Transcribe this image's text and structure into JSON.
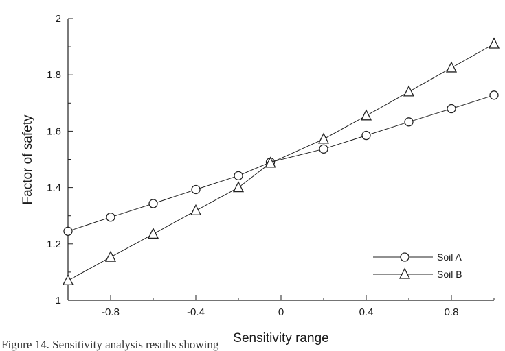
{
  "chart_data": {
    "type": "line",
    "xlabel": "Sensitivity range",
    "ylabel": "Factor of safety",
    "xlim": [
      -1,
      1
    ],
    "ylim": [
      1,
      2
    ],
    "x_ticks": [
      -0.8,
      -0.4,
      0,
      0.4,
      0.8
    ],
    "x_tick_labels": [
      "-0.8",
      "-0.4",
      "0",
      "0.4",
      "0.8"
    ],
    "y_ticks": [
      1,
      1.2,
      1.4,
      1.6,
      1.8,
      2
    ],
    "y_tick_labels": [
      "1",
      "1.2",
      "1.4",
      "1.6",
      "1.8",
      "2"
    ],
    "grid": false,
    "legend_position": "bottom-right",
    "series": [
      {
        "name": "Soil A",
        "marker": "circle",
        "x": [
          -1,
          -0.8,
          -0.6,
          -0.4,
          -0.2,
          -0.05,
          0.2,
          0.4,
          0.6,
          0.8,
          1
        ],
        "y": [
          1.245,
          1.295,
          1.343,
          1.393,
          1.442,
          1.49,
          1.537,
          1.585,
          1.633,
          1.68,
          1.728
        ]
      },
      {
        "name": "Soil B",
        "marker": "triangle",
        "x": [
          -1,
          -0.8,
          -0.6,
          -0.4,
          -0.2,
          -0.05,
          0.2,
          0.4,
          0.6,
          0.8,
          1
        ],
        "y": [
          1.07,
          1.153,
          1.235,
          1.318,
          1.4,
          1.487,
          1.572,
          1.655,
          1.74,
          1.825,
          1.91
        ]
      }
    ]
  },
  "caption": "Figure 14. Sensitivity analysis results showing"
}
